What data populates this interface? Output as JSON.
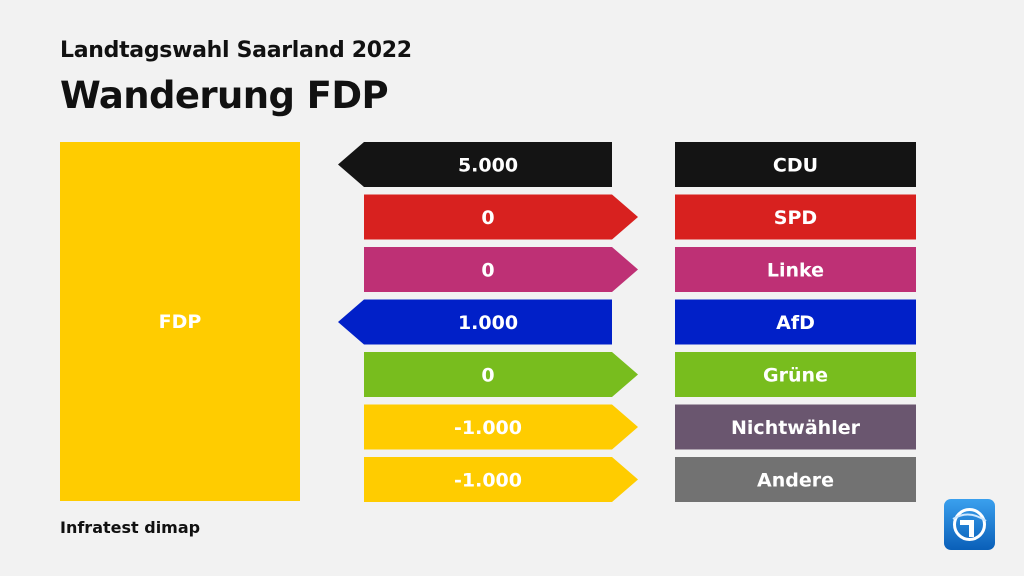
{
  "header": {
    "subtitle": "Landtagswahl Saarland 2022",
    "title": "Wanderung FDP"
  },
  "focus_party": {
    "label": "FDP",
    "color": "#ffcc00"
  },
  "footer": {
    "source": "Infratest dimap"
  },
  "logo": {
    "icon": "das-erste-logo-icon",
    "color": "#0a6fd0"
  },
  "chart_data": {
    "type": "bar",
    "categories": [
      "CDU",
      "SPD",
      "Linke",
      "AfD",
      "Grüne",
      "Nichtwähler",
      "Andere"
    ],
    "values": [
      5000,
      0,
      0,
      1000,
      0,
      -1000,
      -1000
    ],
    "value_labels": [
      "5.000",
      "0",
      "0",
      "1.000",
      "0",
      "-1.000",
      "-1.000"
    ],
    "arrow_direction": [
      "left",
      "right",
      "right",
      "left",
      "right",
      "right",
      "right"
    ],
    "colors": [
      "#141414",
      "#d8211f",
      "#be3075",
      "#0120c8",
      "#78bd1e",
      "#ffcc00",
      "#ffcc00"
    ],
    "label_colors": [
      "#141414",
      "#d8211f",
      "#be3075",
      "#0120c8",
      "#78bd1e",
      "#6a566f",
      "#727272"
    ]
  }
}
